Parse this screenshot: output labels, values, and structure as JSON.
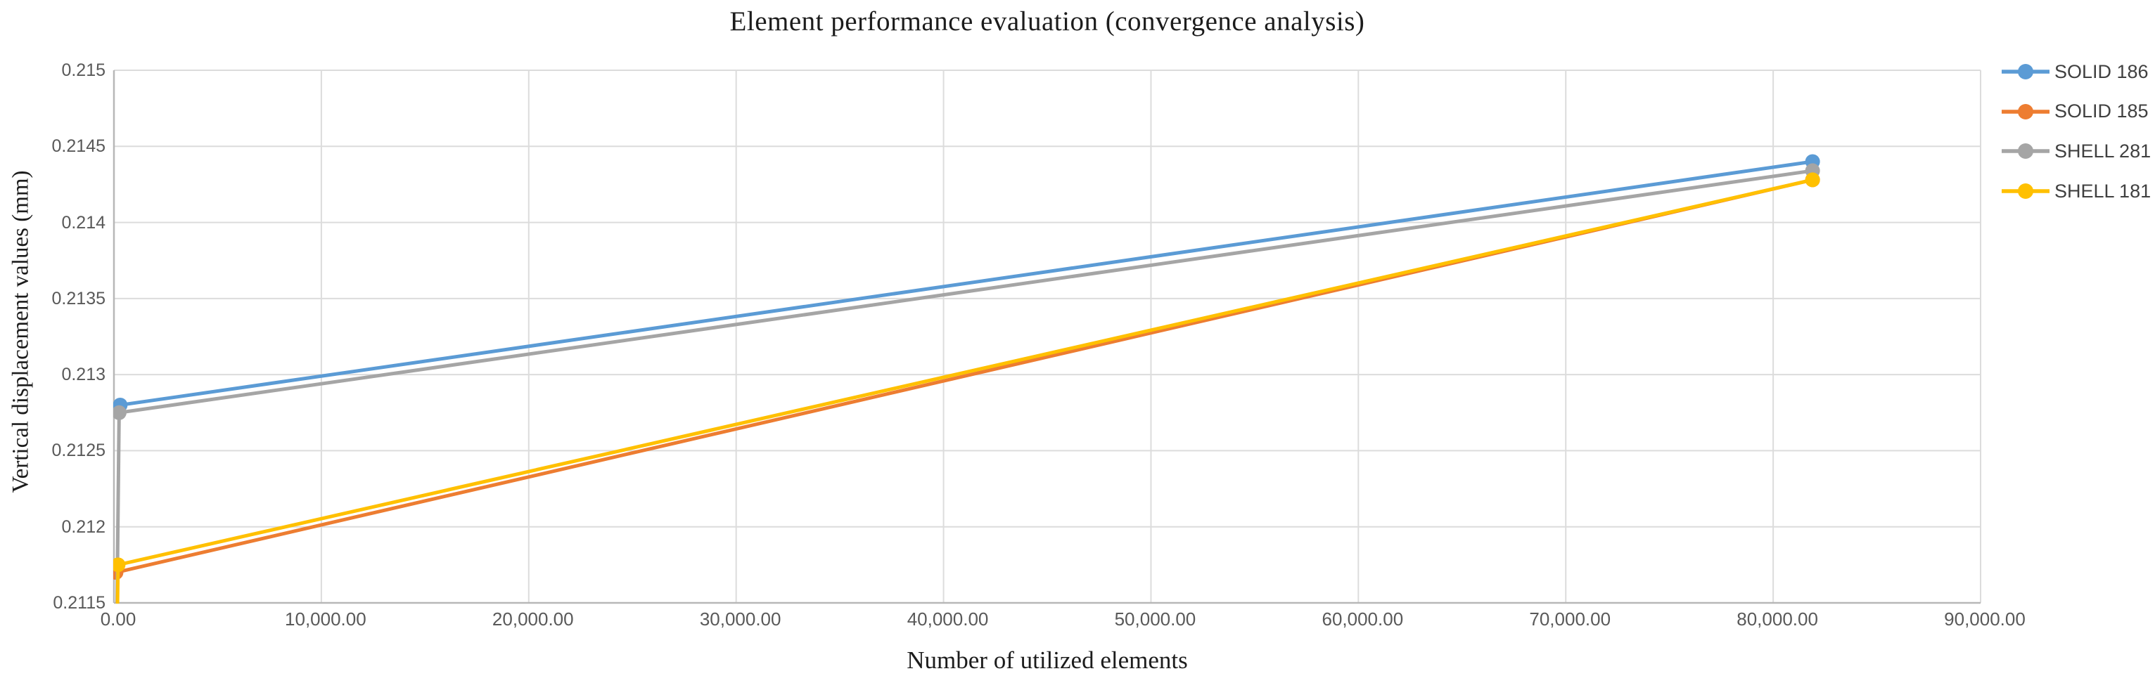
{
  "chart_data": {
    "type": "line",
    "title": "Element performance evaluation (convergence analysis)",
    "xlabel": "Number of utilized elements",
    "ylabel": "Vertical displacement values (mm)",
    "xlim": [
      0,
      90000
    ],
    "ylim": [
      0.2115,
      0.215
    ],
    "grid": true,
    "legend_position": "right",
    "x_ticks": [
      {
        "value": 0,
        "label": "0.00"
      },
      {
        "value": 10000,
        "label": "10,000.00"
      },
      {
        "value": 20000,
        "label": "20,000.00"
      },
      {
        "value": 30000,
        "label": "30,000.00"
      },
      {
        "value": 40000,
        "label": "40,000.00"
      },
      {
        "value": 50000,
        "label": "50,000.00"
      },
      {
        "value": 60000,
        "label": "60,000.00"
      },
      {
        "value": 70000,
        "label": "70,000.00"
      },
      {
        "value": 80000,
        "label": "80,000.00"
      },
      {
        "value": 90000,
        "label": "90,000.00"
      }
    ],
    "y_ticks": [
      {
        "value": 0.2115,
        "label": "0.2115"
      },
      {
        "value": 0.212,
        "label": "0.212"
      },
      {
        "value": 0.2125,
        "label": "0.2125"
      },
      {
        "value": 0.213,
        "label": "0.213"
      },
      {
        "value": 0.2135,
        "label": "0.2135"
      },
      {
        "value": 0.214,
        "label": "0.214"
      },
      {
        "value": 0.2145,
        "label": "0.2145"
      },
      {
        "value": 0.215,
        "label": "0.215"
      }
    ],
    "series": [
      {
        "name": "SOLID 186",
        "color": "#5B9BD5",
        "marker": "circle",
        "points": [
          {
            "x": 300,
            "y": 0.2128,
            "marker": true
          },
          {
            "x": 81900,
            "y": 0.2144,
            "marker": true
          }
        ]
      },
      {
        "name": "SOLID 185",
        "color": "#ED7D31",
        "marker": "circle",
        "points": [
          {
            "x": 100,
            "y": 0.2117,
            "marker": true
          },
          {
            "x": 81900,
            "y": 0.21428,
            "marker": true
          }
        ]
      },
      {
        "name": "SHELL 281",
        "color": "#A5A5A5",
        "marker": "circle",
        "points": [
          {
            "x": 150,
            "y": 0.2115,
            "marker": false
          },
          {
            "x": 250,
            "y": 0.21275,
            "marker": true
          },
          {
            "x": 81900,
            "y": 0.21434,
            "marker": true
          }
        ]
      },
      {
        "name": "SHELL 181",
        "color": "#FFC000",
        "marker": "circle",
        "points": [
          {
            "x": 150,
            "y": 0.2113,
            "marker": false
          },
          {
            "x": 200,
            "y": 0.21175,
            "marker": true
          },
          {
            "x": 81900,
            "y": 0.21428,
            "marker": true
          }
        ]
      }
    ]
  },
  "palette": {
    "gridline": "#DCDCDC",
    "axis_line": "#B7B7B7",
    "tick_text": "#595959",
    "title_text": "#1C1C1C",
    "legend_text": "#404040",
    "background": "#FFFFFF"
  }
}
